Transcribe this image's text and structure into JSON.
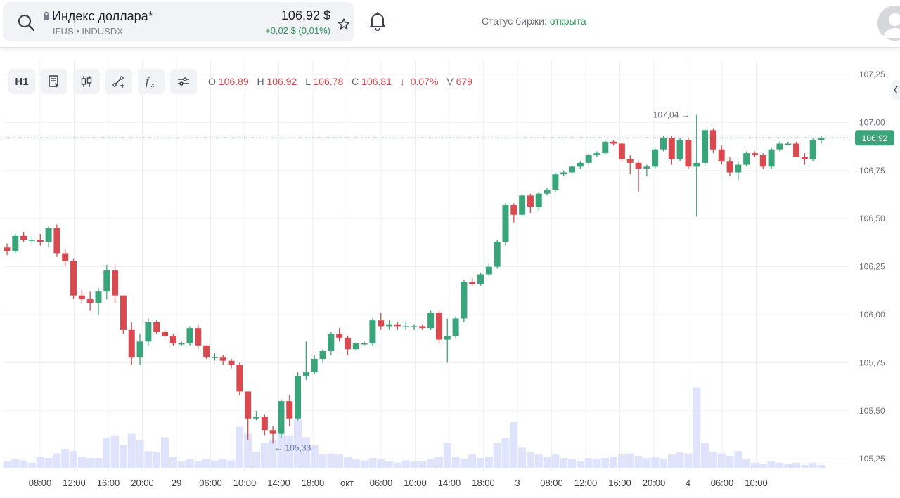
{
  "header": {
    "ticker_name": "Индекс доллара*",
    "ticker_sub": "IFUS • INDUSDX",
    "price": "106,92 $",
    "change": "+0,02 $ (0,01%)",
    "status_label": "Статус биржи: ",
    "status_value": "открыта",
    "icons": [
      "search-icon",
      "lock-icon",
      "star-icon",
      "bell-icon",
      "avatar"
    ]
  },
  "toolbar": {
    "interval": "H1",
    "icons": [
      "script-icon",
      "candles-icon",
      "drawing-icon",
      "indicators-icon",
      "settings-icon"
    ]
  },
  "ohlc": {
    "o_label": "O",
    "o": "106.89",
    "h_label": "H",
    "h": "106.92",
    "l_label": "L",
    "l": "106.78",
    "c_label": "C",
    "c": "106.81",
    "chg_arrow": "↓",
    "chg": "0.07%",
    "v_label": "V",
    "v": "679"
  },
  "colors": {
    "up": "#3aa57a",
    "down": "#d84a4f",
    "volume": "#dfe3fb",
    "grid": "#eef0f3",
    "last_price_bg": "#3aa57a"
  },
  "chart_data": {
    "type": "candlestick",
    "interval": "H1",
    "yticks": [
      "107,25",
      "107,00",
      "106,75",
      "106,50",
      "106,25",
      "106,00",
      "105,75",
      "105,50",
      "105,25"
    ],
    "ylim": [
      105.2,
      107.3
    ],
    "xticks": [
      "08:00",
      "12:00",
      "16:00",
      "20:00",
      "29",
      "06:00",
      "10:00",
      "14:00",
      "18:00",
      "окт",
      "06:00",
      "10:00",
      "14:00",
      "18:00",
      "3",
      "08:00",
      "12:00",
      "16:00",
      "20:00",
      "4",
      "06:00",
      "10:00"
    ],
    "last_price": 106.92,
    "last_price_label": "106,92",
    "annotations": [
      {
        "label": "107,04",
        "value": 107.04
      },
      {
        "label": "105,33",
        "value": 105.33
      }
    ],
    "candles": [
      [
        106.35,
        106.37,
        106.31,
        106.33,
        6
      ],
      [
        106.33,
        106.42,
        106.32,
        106.41,
        8
      ],
      [
        106.41,
        106.43,
        106.38,
        106.39,
        7
      ],
      [
        106.39,
        106.41,
        106.37,
        106.39,
        5
      ],
      [
        106.39,
        106.42,
        106.36,
        106.38,
        10
      ],
      [
        106.38,
        106.46,
        106.35,
        106.45,
        9
      ],
      [
        106.45,
        106.47,
        106.3,
        106.32,
        13
      ],
      [
        106.32,
        106.34,
        106.25,
        106.28,
        17
      ],
      [
        106.28,
        106.29,
        106.08,
        106.1,
        15
      ],
      [
        106.1,
        106.13,
        106.06,
        106.08,
        10
      ],
      [
        106.08,
        106.12,
        106.02,
        106.06,
        9
      ],
      [
        106.06,
        106.14,
        106.0,
        106.12,
        9
      ],
      [
        106.12,
        106.26,
        106.08,
        106.23,
        26
      ],
      [
        106.23,
        106.26,
        106.06,
        106.1,
        28
      ],
      [
        106.1,
        106.1,
        105.9,
        105.92,
        20
      ],
      [
        105.92,
        105.96,
        105.74,
        105.78,
        30
      ],
      [
        105.78,
        105.9,
        105.74,
        105.86,
        25
      ],
      [
        105.86,
        105.98,
        105.84,
        105.96,
        15
      ],
      [
        105.96,
        105.97,
        105.9,
        105.91,
        14
      ],
      [
        105.91,
        105.92,
        105.88,
        105.89,
        27
      ],
      [
        105.89,
        105.9,
        105.84,
        105.85,
        10
      ],
      [
        105.85,
        105.86,
        105.84,
        105.85,
        6
      ],
      [
        105.85,
        105.94,
        105.84,
        105.93,
        8
      ],
      [
        105.93,
        105.95,
        105.82,
        105.84,
        6
      ],
      [
        105.84,
        105.84,
        105.77,
        105.78,
        8
      ],
      [
        105.78,
        105.8,
        105.76,
        105.78,
        7
      ],
      [
        105.78,
        105.79,
        105.74,
        105.76,
        8
      ],
      [
        105.76,
        105.77,
        105.72,
        105.74,
        7
      ],
      [
        105.74,
        105.75,
        105.58,
        105.6,
        36
      ],
      [
        105.6,
        105.6,
        105.35,
        105.46,
        30
      ],
      [
        105.46,
        105.5,
        105.45,
        105.47,
        14
      ],
      [
        105.47,
        105.48,
        105.37,
        105.4,
        22
      ],
      [
        105.4,
        105.42,
        105.33,
        105.38,
        25
      ],
      [
        105.38,
        105.56,
        105.36,
        105.55,
        30
      ],
      [
        105.55,
        105.58,
        105.42,
        105.46,
        28
      ],
      [
        105.46,
        105.7,
        105.45,
        105.68,
        42
      ],
      [
        105.68,
        105.86,
        105.66,
        105.7,
        27
      ],
      [
        105.7,
        105.79,
        105.69,
        105.77,
        20
      ],
      [
        105.77,
        105.82,
        105.75,
        105.81,
        12
      ],
      [
        105.81,
        105.91,
        105.79,
        105.9,
        13
      ],
      [
        105.9,
        105.93,
        105.86,
        105.88,
        12
      ],
      [
        105.88,
        105.89,
        105.79,
        105.82,
        10
      ],
      [
        105.82,
        105.86,
        105.81,
        105.85,
        8
      ],
      [
        105.85,
        105.86,
        105.84,
        105.85,
        7
      ],
      [
        105.85,
        105.98,
        105.84,
        105.97,
        9
      ],
      [
        105.97,
        106.01,
        105.92,
        105.94,
        8
      ],
      [
        105.94,
        105.97,
        105.92,
        105.95,
        6
      ],
      [
        105.95,
        105.96,
        105.92,
        105.94,
        5
      ],
      [
        105.94,
        105.96,
        105.92,
        105.94,
        7
      ],
      [
        105.94,
        105.95,
        105.92,
        105.94,
        6
      ],
      [
        105.94,
        105.95,
        105.92,
        105.93,
        6
      ],
      [
        105.93,
        106.02,
        105.92,
        106.01,
        8
      ],
      [
        106.01,
        106.02,
        105.85,
        105.87,
        10
      ],
      [
        105.87,
        105.98,
        105.75,
        105.89,
        22
      ],
      [
        105.89,
        105.99,
        105.88,
        105.98,
        10
      ],
      [
        105.98,
        106.18,
        105.96,
        106.17,
        8
      ],
      [
        106.17,
        106.19,
        106.15,
        106.16,
        12
      ],
      [
        106.16,
        106.22,
        106.15,
        106.21,
        9
      ],
      [
        106.21,
        106.27,
        106.2,
        106.25,
        10
      ],
      [
        106.25,
        106.39,
        106.24,
        106.38,
        22
      ],
      [
        106.38,
        106.58,
        106.36,
        106.57,
        26
      ],
      [
        106.57,
        106.58,
        106.48,
        106.52,
        40
      ],
      [
        106.52,
        106.63,
        106.51,
        106.62,
        18
      ],
      [
        106.62,
        106.63,
        106.53,
        106.56,
        14
      ],
      [
        106.56,
        106.64,
        106.54,
        106.63,
        12
      ],
      [
        106.63,
        106.66,
        106.62,
        106.65,
        10
      ],
      [
        106.65,
        106.74,
        106.64,
        106.73,
        12
      ],
      [
        106.73,
        106.75,
        106.72,
        106.74,
        9
      ],
      [
        106.74,
        106.78,
        106.73,
        106.77,
        8
      ],
      [
        106.77,
        106.8,
        106.76,
        106.79,
        6
      ],
      [
        106.79,
        106.84,
        106.78,
        106.83,
        9
      ],
      [
        106.83,
        106.85,
        106.82,
        106.84,
        8
      ],
      [
        106.84,
        106.91,
        106.83,
        106.9,
        9
      ],
      [
        106.9,
        106.91,
        106.88,
        106.89,
        10
      ],
      [
        106.89,
        106.9,
        106.8,
        106.81,
        12
      ],
      [
        106.81,
        106.83,
        106.73,
        106.79,
        13
      ],
      [
        106.79,
        106.8,
        106.64,
        106.76,
        11
      ],
      [
        106.76,
        106.78,
        106.72,
        106.77,
        9
      ],
      [
        106.77,
        106.87,
        106.76,
        106.86,
        10
      ],
      [
        106.86,
        106.93,
        106.85,
        106.92,
        8
      ],
      [
        106.92,
        106.93,
        106.78,
        106.81,
        12
      ],
      [
        106.81,
        106.92,
        106.8,
        106.91,
        14
      ],
      [
        106.91,
        106.92,
        106.76,
        106.77,
        13
      ],
      [
        106.77,
        107.04,
        106.51,
        106.79,
        70
      ],
      [
        106.79,
        106.97,
        106.77,
        106.96,
        22
      ],
      [
        106.96,
        106.97,
        106.84,
        106.86,
        14
      ],
      [
        106.86,
        106.88,
        106.78,
        106.8,
        13
      ],
      [
        106.8,
        106.82,
        106.72,
        106.74,
        11
      ],
      [
        106.74,
        106.8,
        106.7,
        106.78,
        15
      ],
      [
        106.78,
        106.85,
        106.77,
        106.84,
        8
      ],
      [
        106.84,
        106.85,
        106.82,
        106.83,
        5
      ],
      [
        106.83,
        106.84,
        106.76,
        106.77,
        4
      ],
      [
        106.77,
        106.87,
        106.76,
        106.86,
        6
      ],
      [
        106.86,
        106.9,
        106.85,
        106.89,
        5
      ],
      [
        106.89,
        106.9,
        106.88,
        106.89,
        4
      ],
      [
        106.89,
        106.9,
        106.82,
        106.82,
        5
      ],
      [
        106.82,
        106.84,
        106.78,
        106.81,
        3
      ],
      [
        106.81,
        106.92,
        106.8,
        106.91,
        5
      ],
      [
        106.91,
        106.93,
        106.89,
        106.92,
        3
      ]
    ]
  }
}
